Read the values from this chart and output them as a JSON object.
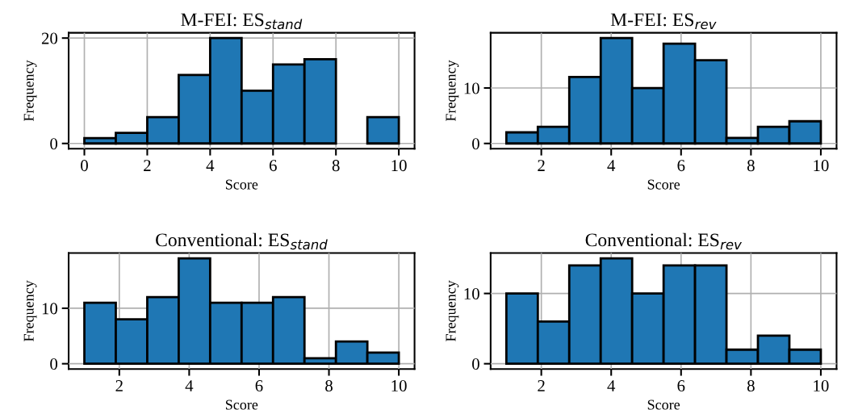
{
  "chart_data": [
    {
      "type": "histogram",
      "title": "M-FEI: ES$_{stand}$",
      "xlabel": "Score",
      "ylabel": "Frequency",
      "color": "#1f77b4",
      "bins": [
        0,
        1,
        2,
        3,
        4,
        5,
        6,
        7,
        8,
        9,
        10
      ],
      "values": [
        1,
        2,
        5,
        13,
        20,
        10,
        15,
        16,
        0,
        5
      ],
      "xlim": [
        -0.5,
        10.5
      ],
      "xticks": [
        0,
        2,
        4,
        6,
        8,
        10
      ],
      "ylim": [
        -1,
        21
      ],
      "yticks": [
        0,
        20
      ],
      "grid": true
    },
    {
      "type": "histogram",
      "title": "M-FEI: ES$_{rev}$",
      "xlabel": "Score",
      "ylabel": "Frequency",
      "color": "#1f77b4",
      "bins": [
        1,
        1.9,
        2.8,
        3.7,
        4.6,
        5.5,
        6.4,
        7.3,
        8.2,
        9.1,
        10
      ],
      "values": [
        2,
        3,
        12,
        19,
        10,
        18,
        15,
        1,
        3,
        4
      ],
      "xlim": [
        0.55,
        10.45
      ],
      "xticks": [
        2,
        4,
        6,
        8,
        10
      ],
      "ylim": [
        -0.95,
        19.95
      ],
      "yticks": [
        0,
        10
      ],
      "grid": true
    },
    {
      "type": "histogram",
      "title": "Conventional: ES$_{stand}$",
      "xlabel": "Score",
      "ylabel": "Frequency",
      "color": "#1f77b4",
      "bins": [
        1,
        1.9,
        2.8,
        3.7,
        4.6,
        5.5,
        6.4,
        7.3,
        8.2,
        9.1,
        10
      ],
      "values": [
        11,
        8,
        12,
        19,
        11,
        11,
        12,
        1,
        4,
        2
      ],
      "xlim": [
        0.55,
        10.45
      ],
      "xticks": [
        2,
        4,
        6,
        8,
        10
      ],
      "ylim": [
        -0.95,
        19.95
      ],
      "yticks": [
        0,
        10
      ],
      "grid": true
    },
    {
      "type": "histogram",
      "title": "Conventional: ES$_{rev}$",
      "xlabel": "Score",
      "ylabel": "Frequency",
      "color": "#1f77b4",
      "bins": [
        1,
        1.9,
        2.8,
        3.7,
        4.6,
        5.5,
        6.4,
        7.3,
        8.2,
        9.1,
        10
      ],
      "values": [
        10,
        6,
        14,
        15,
        10,
        14,
        14,
        2,
        4,
        2
      ],
      "xlim": [
        0.55,
        10.45
      ],
      "xticks": [
        2,
        4,
        6,
        8,
        10
      ],
      "ylim": [
        -0.75,
        15.75
      ],
      "yticks": [
        0,
        10
      ],
      "grid": true
    }
  ]
}
